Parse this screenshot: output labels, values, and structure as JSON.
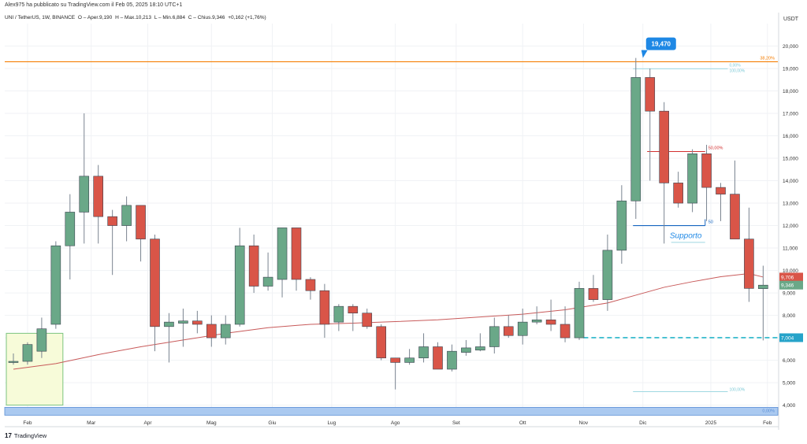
{
  "header": {
    "publish_line": "Alex975 ha pubblicato su TradingView.com il Feb 05, 2025 18:10 UTC+1"
  },
  "info": {
    "symbol": "UNI / TetherUS, 1W, BINANCE",
    "open": "O – Aper.9,190",
    "high": "H – Max.10,213",
    "low": "L – Min.6,884",
    "close": "C – Chius.9,346",
    "change": "+0,162 (+1,76%)"
  },
  "footer": {
    "logo_text": "TradingView",
    "logo_mark": "17"
  },
  "colors": {
    "bull": "#6aa888",
    "bear": "#d95548",
    "ma": "#c85a5a",
    "resistance": "#f57c00",
    "support": "#1565c0",
    "dash": "#26b5c9",
    "box_fill": "#f7fbd9",
    "box_stroke": "#7cc47f",
    "fib_label": "#d32f2f",
    "band": "#aac9f0"
  },
  "chart_data": {
    "type": "candlestick",
    "currency": "USDT",
    "ylim": [
      3.6,
      21.0
    ],
    "yticks": [
      4,
      5,
      6,
      7,
      8,
      9,
      10,
      11,
      12,
      13,
      14,
      15,
      16,
      17,
      18,
      19,
      20
    ],
    "ytick_labels": [
      "4,000",
      "5,000",
      "6,000",
      "7,000",
      "8,000",
      "9,000",
      "10,000",
      "11,000",
      "12,000",
      "13,000",
      "14,000",
      "15,000",
      "16,000",
      "17,000",
      "18,000",
      "19,000",
      "20,000"
    ],
    "x_labels": [
      {
        "label": "Feb",
        "i": 1
      },
      {
        "label": "Mar",
        "i": 5.5
      },
      {
        "label": "Apr",
        "i": 9.5
      },
      {
        "label": "Mag",
        "i": 14
      },
      {
        "label": "Giu",
        "i": 18.3
      },
      {
        "label": "Lug",
        "i": 22.5
      },
      {
        "label": "Ago",
        "i": 27
      },
      {
        "label": "Set",
        "i": 31.3
      },
      {
        "label": "Ott",
        "i": 36
      },
      {
        "label": "Nov",
        "i": 40.3
      },
      {
        "label": "Dic",
        "i": 44.5
      },
      {
        "label": "2025",
        "i": 49.3
      },
      {
        "label": "Feb",
        "i": 53.3
      }
    ],
    "candles": [
      {
        "o": 5.95,
        "h": 6.3,
        "l": 5.8,
        "c": 5.95
      },
      {
        "o": 5.95,
        "h": 6.8,
        "l": 5.8,
        "c": 6.7
      },
      {
        "o": 6.4,
        "h": 7.9,
        "l": 6.1,
        "c": 7.4
      },
      {
        "o": 7.6,
        "h": 11.3,
        "l": 7.4,
        "c": 11.1
      },
      {
        "o": 11.1,
        "h": 13.4,
        "l": 9.6,
        "c": 12.6
      },
      {
        "o": 12.6,
        "h": 17.0,
        "l": 11.2,
        "c": 14.2
      },
      {
        "o": 14.2,
        "h": 14.7,
        "l": 11.2,
        "c": 12.4
      },
      {
        "o": 12.4,
        "h": 12.7,
        "l": 9.8,
        "c": 12.0
      },
      {
        "o": 12.0,
        "h": 13.3,
        "l": 11.3,
        "c": 12.9
      },
      {
        "o": 12.9,
        "h": 12.9,
        "l": 10.4,
        "c": 11.4
      },
      {
        "o": 11.4,
        "h": 11.6,
        "l": 6.4,
        "c": 7.5
      },
      {
        "o": 7.5,
        "h": 8.1,
        "l": 5.9,
        "c": 7.7
      },
      {
        "o": 7.65,
        "h": 8.3,
        "l": 6.6,
        "c": 7.75
      },
      {
        "o": 7.75,
        "h": 8.2,
        "l": 7.2,
        "c": 7.6
      },
      {
        "o": 7.6,
        "h": 8.0,
        "l": 6.6,
        "c": 7.0
      },
      {
        "o": 7.0,
        "h": 8.0,
        "l": 6.7,
        "c": 7.6
      },
      {
        "o": 7.6,
        "h": 11.9,
        "l": 7.5,
        "c": 11.1
      },
      {
        "o": 11.1,
        "h": 11.6,
        "l": 9.0,
        "c": 9.3
      },
      {
        "o": 9.3,
        "h": 10.8,
        "l": 9.1,
        "c": 9.7
      },
      {
        "o": 9.6,
        "h": 11.9,
        "l": 8.8,
        "c": 11.9
      },
      {
        "o": 11.9,
        "h": 11.9,
        "l": 9.1,
        "c": 9.6
      },
      {
        "o": 9.6,
        "h": 9.7,
        "l": 8.7,
        "c": 9.1
      },
      {
        "o": 9.1,
        "h": 9.4,
        "l": 7.0,
        "c": 7.6
      },
      {
        "o": 7.7,
        "h": 8.5,
        "l": 7.3,
        "c": 8.4
      },
      {
        "o": 8.4,
        "h": 8.5,
        "l": 7.3,
        "c": 8.1
      },
      {
        "o": 8.1,
        "h": 8.3,
        "l": 7.4,
        "c": 7.5
      },
      {
        "o": 7.5,
        "h": 7.6,
        "l": 6.0,
        "c": 6.1
      },
      {
        "o": 6.1,
        "h": 6.1,
        "l": 4.7,
        "c": 5.9
      },
      {
        "o": 5.9,
        "h": 6.5,
        "l": 5.8,
        "c": 6.1
      },
      {
        "o": 6.1,
        "h": 7.2,
        "l": 5.9,
        "c": 6.6
      },
      {
        "o": 6.6,
        "h": 6.8,
        "l": 5.6,
        "c": 5.6
      },
      {
        "o": 5.6,
        "h": 6.7,
        "l": 5.5,
        "c": 6.4
      },
      {
        "o": 6.35,
        "h": 6.9,
        "l": 6.2,
        "c": 6.55
      },
      {
        "o": 6.45,
        "h": 7.2,
        "l": 6.4,
        "c": 6.6
      },
      {
        "o": 6.6,
        "h": 7.9,
        "l": 6.3,
        "c": 7.5
      },
      {
        "o": 7.5,
        "h": 8.0,
        "l": 7.0,
        "c": 7.1
      },
      {
        "o": 7.1,
        "h": 8.3,
        "l": 6.7,
        "c": 7.7
      },
      {
        "o": 7.7,
        "h": 8.4,
        "l": 7.6,
        "c": 7.8
      },
      {
        "o": 7.8,
        "h": 8.7,
        "l": 7.3,
        "c": 7.6
      },
      {
        "o": 7.6,
        "h": 8.4,
        "l": 6.8,
        "c": 7.0
      },
      {
        "o": 7.0,
        "h": 9.5,
        "l": 6.9,
        "c": 9.2
      },
      {
        "o": 9.2,
        "h": 9.8,
        "l": 8.6,
        "c": 8.7
      },
      {
        "o": 8.7,
        "h": 11.6,
        "l": 8.2,
        "c": 10.9
      },
      {
        "o": 10.9,
        "h": 13.8,
        "l": 10.3,
        "c": 13.1
      },
      {
        "o": 13.1,
        "h": 19.47,
        "l": 12.3,
        "c": 18.6
      },
      {
        "o": 18.6,
        "h": 19.0,
        "l": 14.0,
        "c": 17.1
      },
      {
        "o": 17.1,
        "h": 17.5,
        "l": 11.2,
        "c": 13.9
      },
      {
        "o": 13.9,
        "h": 14.4,
        "l": 12.8,
        "c": 13.0
      },
      {
        "o": 13.0,
        "h": 15.4,
        "l": 12.6,
        "c": 15.2
      },
      {
        "o": 15.2,
        "h": 15.6,
        "l": 12.2,
        "c": 13.7
      },
      {
        "o": 13.7,
        "h": 13.9,
        "l": 12.2,
        "c": 13.4
      },
      {
        "o": 13.4,
        "h": 14.9,
        "l": 11.4,
        "c": 11.4
      },
      {
        "o": 11.4,
        "h": 12.8,
        "l": 8.6,
        "c": 9.2
      },
      {
        "o": 9.19,
        "h": 10.213,
        "l": 6.884,
        "c": 9.346
      }
    ],
    "moving_average": [
      [
        0,
        5.6
      ],
      [
        3,
        5.85
      ],
      [
        6,
        6.25
      ],
      [
        9,
        6.6
      ],
      [
        12,
        6.9
      ],
      [
        15,
        7.2
      ],
      [
        18,
        7.45
      ],
      [
        21,
        7.6
      ],
      [
        24,
        7.65
      ],
      [
        27,
        7.72
      ],
      [
        30,
        7.8
      ],
      [
        33,
        7.93
      ],
      [
        36,
        8.05
      ],
      [
        39,
        8.25
      ],
      [
        42,
        8.55
      ],
      [
        44,
        8.9
      ],
      [
        46,
        9.25
      ],
      [
        48,
        9.5
      ],
      [
        50,
        9.72
      ],
      [
        52,
        9.86
      ],
      [
        53,
        9.706
      ]
    ],
    "levels": {
      "resistance": {
        "price": 19.3,
        "label": "38,20%"
      },
      "fib_top": {
        "price": 19.47,
        "label": "0,00%"
      },
      "fib_top_alt_label": "100,00%",
      "fib_mid": {
        "price": 15.3,
        "label": "50,00%",
        "i0": 44.8,
        "i1": 48.9
      },
      "fib_bottom": {
        "price": 4.6,
        "label": "100,00%"
      },
      "support_line": {
        "price": 12.0,
        "i0": 43.8,
        "i1": 48.9,
        "label": "Supporto",
        "tag": "50"
      },
      "support_box": {
        "price": 11.25,
        "i0": 46.5,
        "i1": 48.9
      },
      "dash_support": {
        "price": 7.004,
        "i0": 40.3,
        "i1": 53.6
      },
      "bottom_band": {
        "price_low": 3.55,
        "price_high": 3.9,
        "label": "0,00%"
      }
    },
    "zone_box": {
      "i0": -0.5,
      "i1": 3.5,
      "y_low": 4.0,
      "y_high": 7.2
    },
    "high_marker": {
      "label": "19,470",
      "i": 44.5,
      "price": 19.47
    },
    "price_tags": [
      {
        "label": "9,706",
        "price": 9.706,
        "color": "#d95548"
      },
      {
        "label": "9,346",
        "price": 9.346,
        "color": "#6aa888"
      },
      {
        "label": "7,004",
        "price": 7.004,
        "color": "#26a3c9"
      }
    ]
  }
}
